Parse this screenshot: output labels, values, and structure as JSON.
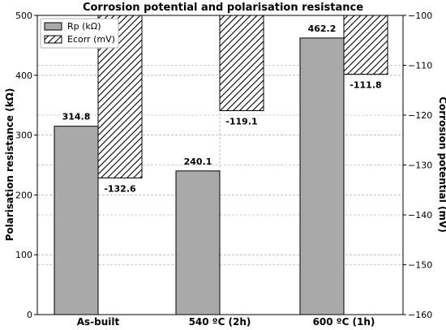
{
  "chart_data": {
    "type": "bar",
    "title": "Corrosion potential and polarisation resistance",
    "categories": [
      "As-built",
      "540 ºC (2h)",
      "600 ºC (1h)"
    ],
    "series": [
      {
        "name": "Rp (kΩ)",
        "axis": "left",
        "values": [
          314.8,
          240.1,
          462.2
        ],
        "labels": [
          "314.8",
          "240.1",
          "462.2"
        ],
        "fill": "#a9a9a9",
        "pattern": "solid"
      },
      {
        "name": "Ecorr (mV)",
        "axis": "right",
        "values": [
          -132.6,
          -119.1,
          -111.8
        ],
        "labels": [
          "-132.6",
          "-119.1",
          "-111.8"
        ],
        "fill": "#ffffff",
        "pattern": "hatch"
      }
    ],
    "ylabel_left": "Polarisation resistance (kΩ)",
    "ylabel_right": "Corrosion potential (mV)",
    "ylim_left": [
      0,
      500
    ],
    "yticks_left": [
      0,
      100,
      200,
      300,
      400,
      500
    ],
    "ylim_right": [
      -160,
      -100
    ],
    "yticks_right": [
      -160,
      -150,
      -140,
      -130,
      -120,
      -110,
      -100
    ],
    "ytick_labels_right": [
      "−160",
      "−150",
      "−140",
      "−130",
      "−120",
      "−110",
      "−100"
    ],
    "grid": true,
    "legend_position": "top-left"
  }
}
